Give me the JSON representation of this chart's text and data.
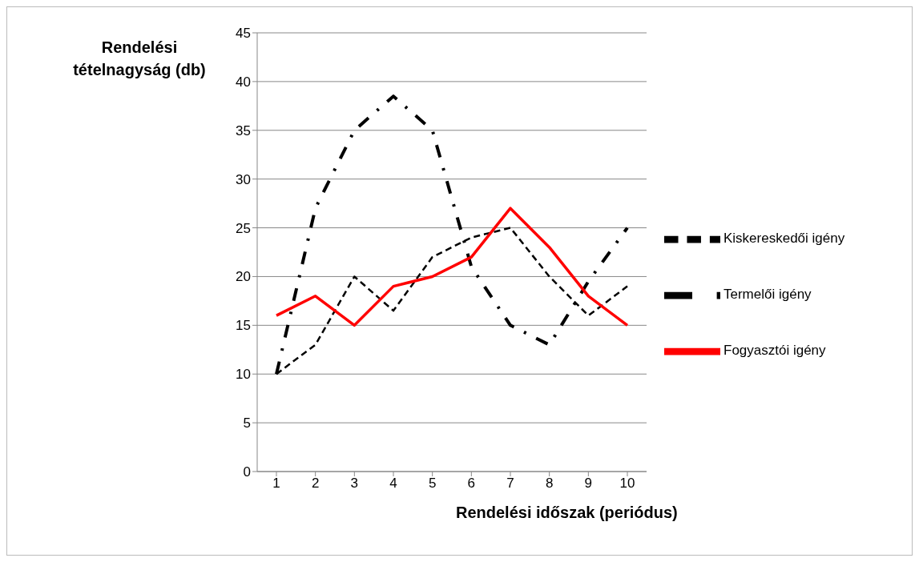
{
  "chart_data": {
    "type": "line",
    "ylabel": "Rendelési tételnagyság (db)",
    "xlabel": "Rendelési időszak (periódus)",
    "categories": [
      "1",
      "2",
      "3",
      "4",
      "5",
      "6",
      "7",
      "8",
      "9",
      "10"
    ],
    "series": [
      {
        "name": "Kiskereskedői igény",
        "color": "#000000",
        "line_style": "dashed",
        "values": [
          10,
          13,
          20,
          16.5,
          22,
          24,
          25,
          20,
          16,
          19
        ]
      },
      {
        "name": "Termelői igény",
        "color": "#000000",
        "line_style": "dashdot",
        "values": [
          10,
          27,
          35,
          38.5,
          35,
          21,
          15,
          13,
          19.5,
          25
        ]
      },
      {
        "name": "Fogyasztói igény",
        "color": "#ff0000",
        "line_style": "solid",
        "values": [
          16,
          18,
          15,
          19,
          20,
          22,
          27,
          23,
          18,
          15
        ]
      }
    ],
    "ylim": [
      0,
      45
    ],
    "yticks": [
      0,
      5,
      10,
      15,
      20,
      25,
      30,
      35,
      40,
      45
    ],
    "grid": "y",
    "legend": "right",
    "marker": "none"
  }
}
